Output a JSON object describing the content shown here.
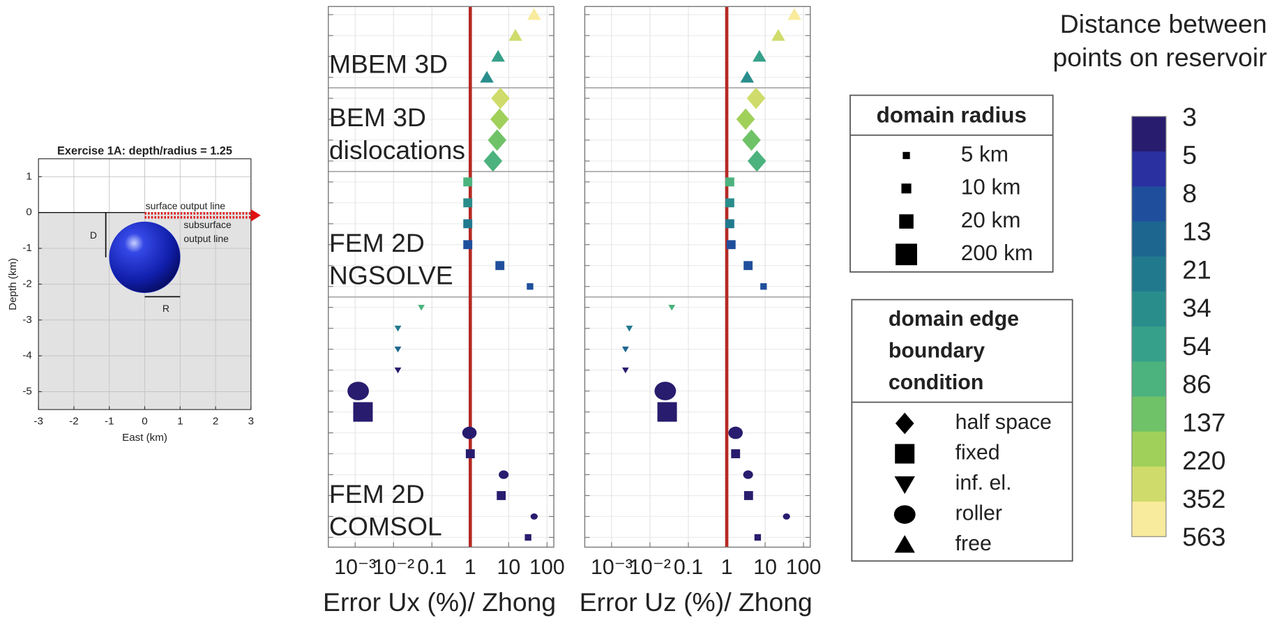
{
  "chart_data": [
    {
      "type": "section",
      "title": "Exercise 1A: depth/radius = 1.25",
      "xlabel": "East (km)",
      "ylabel": "Depth (km)",
      "xlim": [
        -3,
        3
      ],
      "ylim": [
        -5.5,
        1.5
      ],
      "xticks": [
        -3,
        -2,
        -1,
        0,
        1,
        2,
        3
      ],
      "yticks": [
        1,
        0,
        -1,
        -2,
        -3,
        -4,
        -5
      ],
      "grid": true,
      "sphere": {
        "center": [
          0,
          -1.25
        ],
        "radius": 1,
        "color": "#1428c8"
      },
      "output_line": {
        "x": [
          0,
          3
        ],
        "color": "#e01010"
      },
      "annotations": {
        "surface": "surface output line",
        "subsurface": [
          "subsurface",
          "output line"
        ],
        "depth": "D",
        "radius": "R"
      }
    },
    {
      "type": "scatter",
      "log_x": true,
      "xlim": [
        0.0002,
        150
      ],
      "xticks": [
        {
          "value": 0.001,
          "label": "10⁻³"
        },
        {
          "value": 0.01,
          "label": "10⁻²"
        },
        0.1,
        1,
        10,
        100
      ],
      "reference_line": {
        "value": 1,
        "color": "#b52a24"
      },
      "groups": [
        {
          "label": [
            "MBEM 3D"
          ],
          "points": [
            {
              "distance": 563,
              "radius": 20,
              "condition": "free"
            },
            {
              "distance": 352,
              "radius": 20,
              "condition": "free"
            },
            {
              "distance": 54,
              "radius": 20,
              "condition": "free"
            },
            {
              "distance": 34,
              "radius": 20,
              "condition": "free"
            }
          ]
        },
        {
          "label": [
            "BEM 3D",
            "dislocations"
          ],
          "points": [
            {
              "distance": 352,
              "radius": 200,
              "condition": "half space"
            },
            {
              "distance": 220,
              "radius": 200,
              "condition": "half space"
            },
            {
              "distance": 137,
              "radius": 200,
              "condition": "half space"
            },
            {
              "distance": 86,
              "radius": 200,
              "condition": "half space"
            }
          ]
        },
        {
          "label": [
            "FEM 2D",
            "NGSOLVE"
          ],
          "points": [
            {
              "distance": 86,
              "radius": 10,
              "condition": "fixed"
            },
            {
              "distance": 34,
              "radius": 10,
              "condition": "fixed"
            },
            {
              "distance": 21,
              "radius": 10,
              "condition": "fixed"
            },
            {
              "distance": 8,
              "radius": 10,
              "condition": "fixed"
            },
            {
              "distance": 8,
              "radius": 10,
              "condition": "fixed"
            },
            {
              "distance": 8,
              "radius": 5,
              "condition": "fixed"
            }
          ]
        },
        {
          "label": [
            "FEM 2D",
            "COMSOL"
          ],
          "points": [
            {
              "distance": 86,
              "radius": 5,
              "condition": "inf. el."
            },
            {
              "distance": 21,
              "radius": 5,
              "condition": "inf. el."
            },
            {
              "distance": 13,
              "radius": 5,
              "condition": "inf. el."
            },
            {
              "distance": 3,
              "radius": 5,
              "condition": "inf. el."
            },
            {
              "distance": 3,
              "radius": 200,
              "condition": "roller"
            },
            {
              "distance": 3,
              "radius": 200,
              "condition": "fixed"
            },
            {
              "distance": 3,
              "radius": 20,
              "condition": "roller"
            },
            {
              "distance": 3,
              "radius": 10,
              "condition": "fixed"
            },
            {
              "distance": 3,
              "radius": 10,
              "condition": "roller"
            },
            {
              "distance": 3,
              "radius": 10,
              "condition": "fixed"
            },
            {
              "distance": 3,
              "radius": 5,
              "condition": "roller"
            },
            {
              "distance": 3,
              "radius": 5,
              "condition": "fixed"
            }
          ]
        }
      ],
      "panels": [
        {
          "xlabel": "Error Ux (%)/ Zhong",
          "values": [
            46,
            15,
            5.3,
            2.7,
            6.1,
            5.8,
            5,
            3.9,
            0.86,
            0.86,
            0.86,
            0.86,
            5.9,
            36,
            0.053,
            0.013,
            0.013,
            0.013,
            0.0012,
            0.0016,
            0.95,
            1,
            7.4,
            6.4,
            46,
            32
          ]
        },
        {
          "xlabel": "Error Uz (%)/ Zhong",
          "values": [
            58,
            22,
            7.1,
            3.4,
            5.8,
            3.1,
            4.4,
            6.1,
            1.2,
            1.2,
            1.2,
            1.3,
            3.6,
            9.1,
            0.037,
            0.0029,
            0.0023,
            0.0023,
            0.025,
            0.028,
            1.7,
            1.7,
            3.6,
            3.7,
            36,
            6.4
          ]
        }
      ],
      "size_legend": {
        "title": "domain radius",
        "entries": [
          {
            "value": 5,
            "label": "5 km"
          },
          {
            "value": 10,
            "label": "10 km"
          },
          {
            "value": 20,
            "label": "20 km"
          },
          {
            "value": 200,
            "label": "200 km"
          }
        ]
      },
      "shape_legend": {
        "title": [
          "domain edge",
          "boundary",
          "condition"
        ],
        "entries": [
          "half space",
          "fixed",
          "inf. el.",
          "roller",
          "free"
        ]
      },
      "colorbar": {
        "title": [
          "Distance between",
          "points on reservoir"
        ],
        "levels": [
          3,
          5,
          8,
          13,
          21,
          34,
          54,
          86,
          137,
          220,
          352,
          563
        ],
        "colors": [
          "#281c6e",
          "#2a30a0",
          "#1f4f9c",
          "#1d6690",
          "#21798e",
          "#298d8c",
          "#36a08a",
          "#4cb27e",
          "#6fc267",
          "#a0d05a",
          "#cfdc6b",
          "#f8eb9d"
        ]
      }
    }
  ]
}
